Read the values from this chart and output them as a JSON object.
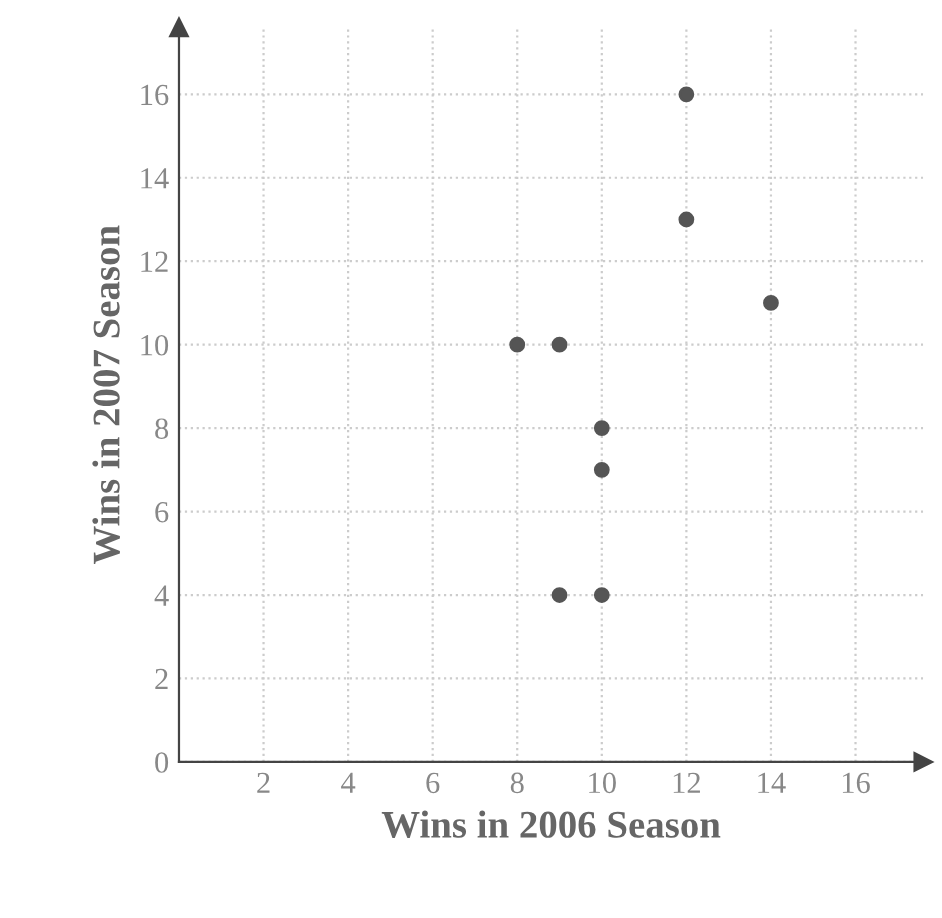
{
  "chart_data": {
    "type": "scatter",
    "xlabel": "Wins in 2006 Season",
    "ylabel": "Wins in 2007 Season",
    "x": [
      8,
      9,
      9,
      10,
      10,
      10,
      12,
      12,
      14
    ],
    "series": [
      {
        "color": "#555555",
        "values": [
          10,
          10,
          4,
          4,
          8,
          7,
          16,
          13,
          11
        ]
      }
    ],
    "xlim": [
      0,
      17.6
    ],
    "ylim": [
      0,
      17.6
    ],
    "xticks": [
      2,
      4,
      6,
      8,
      10,
      12,
      14,
      16
    ],
    "yticks": [
      0,
      2,
      4,
      6,
      8,
      10,
      12,
      14,
      16
    ],
    "grid": true,
    "marker": "circle"
  }
}
